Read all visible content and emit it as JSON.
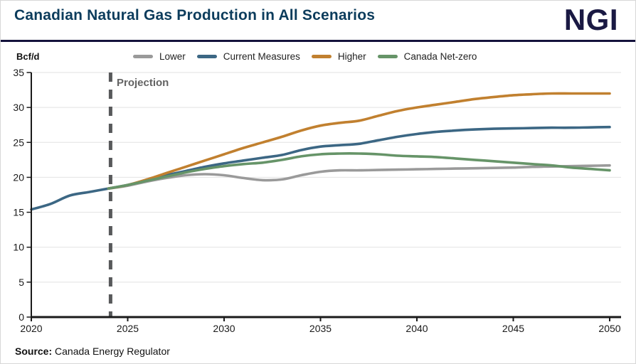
{
  "header": {
    "title": "Canadian Natural Gas Production in All Scenarios",
    "logo": "NGI"
  },
  "footer": {
    "source_label": "Source:",
    "source_text": "Canada Energy Regulator"
  },
  "chart_data": {
    "type": "line",
    "title": "Canadian Natural Gas Production in All Scenarios",
    "unit_label": "Bcf/d",
    "ylim": [
      0,
      35
    ],
    "yticks": [
      0,
      5,
      10,
      15,
      20,
      25,
      30,
      35
    ],
    "xticks": [
      2020,
      2025,
      2030,
      2035,
      2040,
      2045,
      2050
    ],
    "x_range": [
      2020,
      2050
    ],
    "grid": "horizontal",
    "legend_position": "top",
    "annotation": {
      "label": "Projection",
      "year": 2024,
      "color": "#58595b"
    },
    "series": [
      {
        "name": "Lower",
        "color": "#9a9a9a",
        "start_year": 2024,
        "values": [
          18.4,
          18.8,
          19.4,
          19.9,
          20.3,
          20.45,
          20.3,
          19.9,
          19.6,
          19.7,
          20.3,
          20.8,
          21.0,
          21.0,
          21.05,
          21.1,
          21.15,
          21.2,
          21.25,
          21.3,
          21.35,
          21.4,
          21.5,
          21.55,
          21.6,
          21.65,
          21.7
        ]
      },
      {
        "name": "Current Measures",
        "color": "#3c6784",
        "start_year": 2020,
        "values": [
          15.4,
          16.2,
          17.4,
          17.9,
          18.4,
          18.9,
          19.6,
          20.3,
          20.9,
          21.5,
          22.0,
          22.4,
          22.8,
          23.2,
          23.9,
          24.4,
          24.6,
          24.8,
          25.3,
          25.8,
          26.2,
          26.5,
          26.7,
          26.85,
          26.95,
          27.0,
          27.05,
          27.1,
          27.1,
          27.15,
          27.2
        ]
      },
      {
        "name": "Higher",
        "color": "#c1802f",
        "start_year": 2024,
        "values": [
          18.4,
          18.9,
          19.7,
          20.6,
          21.5,
          22.4,
          23.3,
          24.2,
          25.0,
          25.8,
          26.7,
          27.4,
          27.8,
          28.1,
          28.8,
          29.5,
          30.0,
          30.4,
          30.8,
          31.2,
          31.5,
          31.75,
          31.9,
          32.0,
          32.0,
          32.0,
          32.0
        ]
      },
      {
        "name": "Canada Net-zero",
        "color": "#669468",
        "start_year": 2024,
        "values": [
          18.4,
          18.9,
          19.5,
          20.1,
          20.7,
          21.2,
          21.6,
          21.9,
          22.1,
          22.5,
          23.0,
          23.3,
          23.4,
          23.4,
          23.3,
          23.1,
          23.0,
          22.9,
          22.7,
          22.5,
          22.3,
          22.1,
          21.9,
          21.7,
          21.4,
          21.2,
          21.0
        ]
      }
    ]
  }
}
